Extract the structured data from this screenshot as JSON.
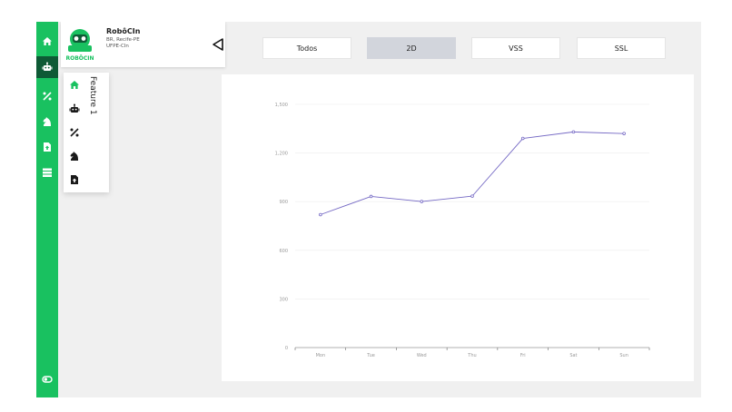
{
  "brand": {
    "name": "RobôCIn",
    "location": "BR, Recife-PE",
    "org": "UFPE-CIn",
    "logo_text": "ROBÔCIN",
    "accent": "#19c160"
  },
  "rail": {
    "icons": [
      "home-icon",
      "robot-icon",
      "percent-icon",
      "chess-knight-icon",
      "file-upload-icon",
      "server-icon"
    ],
    "active": "robot-icon",
    "bottom_icon": "toggle-icon"
  },
  "flyout": {
    "icons": [
      "home-icon",
      "robot-icon",
      "percent-icon",
      "chess-knight-icon",
      "file-upload-icon"
    ],
    "label": "Feature 1"
  },
  "tabs": [
    {
      "label": "Todos",
      "active": false
    },
    {
      "label": "2D",
      "active": true
    },
    {
      "label": "VSS",
      "active": false
    },
    {
      "label": "SSL",
      "active": false
    }
  ],
  "chart_data": {
    "type": "line",
    "categories": [
      "Mon",
      "Tue",
      "Wed",
      "Thu",
      "Fri",
      "Sat",
      "Sun"
    ],
    "series": [
      {
        "values": [
          820,
          932,
          901,
          934,
          1290,
          1330,
          1320
        ],
        "color": "#7468c4"
      }
    ],
    "yticks": [
      "0",
      "300",
      "600",
      "900",
      "1,200",
      "1,500"
    ],
    "ylim": [
      0,
      1500
    ],
    "grid": true
  }
}
